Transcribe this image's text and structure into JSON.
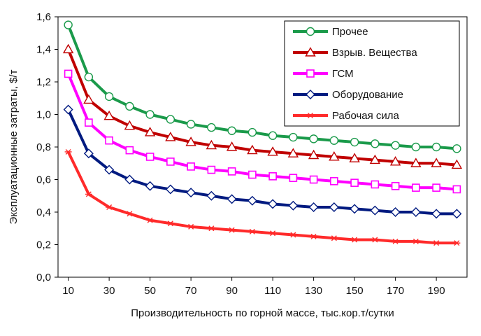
{
  "chart_data": {
    "type": "line",
    "xlabel": "Производительность по горной массе, тыс.кор.т/сутки",
    "ylabel": "Эксплуатационные затраты, $/т",
    "xlim": [
      5,
      205
    ],
    "ylim": [
      0,
      1.6
    ],
    "x_ticks": [
      10,
      30,
      50,
      70,
      90,
      110,
      130,
      150,
      170,
      190
    ],
    "x_tick_labels": [
      "10",
      "30",
      "50",
      "70",
      "90",
      "110",
      "130",
      "150",
      "170",
      "190"
    ],
    "y_ticks": [
      0,
      0.2,
      0.4,
      0.6,
      0.8,
      1.0,
      1.2,
      1.4,
      1.6
    ],
    "y_tick_labels": [
      "0,0",
      "0,2",
      "0,4",
      "0,6",
      "0,8",
      "1,0",
      "1,2",
      "1,4",
      "1,6"
    ],
    "grid": false,
    "legend_position": "top-right",
    "x": [
      10,
      20,
      30,
      40,
      50,
      60,
      70,
      80,
      90,
      100,
      110,
      120,
      130,
      140,
      150,
      160,
      170,
      180,
      190,
      200
    ],
    "series": [
      {
        "name": "Прочее",
        "color": "#1a9a4a",
        "marker": "circle",
        "values": [
          1.55,
          1.23,
          1.11,
          1.05,
          1.0,
          0.97,
          0.94,
          0.92,
          0.9,
          0.89,
          0.87,
          0.86,
          0.85,
          0.84,
          0.83,
          0.82,
          0.81,
          0.8,
          0.8,
          0.79
        ]
      },
      {
        "name": "Взрыв. Вещества",
        "color": "#c00000",
        "marker": "triangle",
        "values": [
          1.4,
          1.09,
          0.99,
          0.93,
          0.89,
          0.86,
          0.83,
          0.81,
          0.8,
          0.78,
          0.77,
          0.76,
          0.75,
          0.74,
          0.73,
          0.72,
          0.71,
          0.7,
          0.7,
          0.69
        ]
      },
      {
        "name": "ГСМ",
        "color": "#ff00ff",
        "marker": "square",
        "values": [
          1.25,
          0.95,
          0.84,
          0.78,
          0.74,
          0.71,
          0.68,
          0.66,
          0.65,
          0.63,
          0.62,
          0.61,
          0.6,
          0.59,
          0.58,
          0.57,
          0.56,
          0.55,
          0.55,
          0.54
        ]
      },
      {
        "name": "Оборудование",
        "color": "#001a80",
        "marker": "diamond",
        "values": [
          1.03,
          0.76,
          0.66,
          0.6,
          0.56,
          0.54,
          0.52,
          0.5,
          0.48,
          0.47,
          0.45,
          0.44,
          0.43,
          0.43,
          0.42,
          0.41,
          0.4,
          0.4,
          0.39,
          0.39
        ]
      },
      {
        "name": "Рабочая сила",
        "color": "#ff2a2a",
        "marker": "star",
        "values": [
          0.77,
          0.51,
          0.43,
          0.39,
          0.35,
          0.33,
          0.31,
          0.3,
          0.29,
          0.28,
          0.27,
          0.26,
          0.25,
          0.24,
          0.23,
          0.23,
          0.22,
          0.22,
          0.21,
          0.21
        ]
      }
    ]
  }
}
